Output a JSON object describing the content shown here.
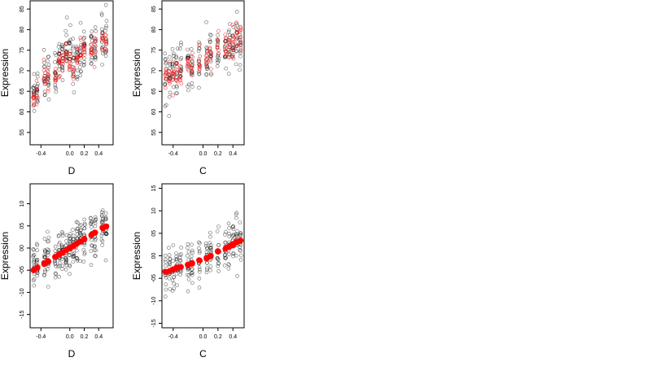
{
  "chart_data": [
    {
      "type": "scatter",
      "xlabel": "D",
      "ylabel": "Expression",
      "xlim": [
        -0.55,
        0.6
      ],
      "ylim": [
        5.2,
        8.7
      ],
      "xticks": [
        -0.4,
        0.0,
        0.2,
        0.4
      ],
      "xtick_labels": [
        "-0.4",
        "0.0",
        "0.2",
        "0.4"
      ],
      "yticks": [
        5.5,
        6.0,
        6.5,
        7.0,
        7.5,
        8.0,
        8.5
      ],
      "ytick_labels": [
        "55",
        "60",
        "65",
        "70",
        "75",
        "80",
        "85"
      ],
      "x_groups": [
        -0.5,
        -0.45,
        -0.35,
        -0.3,
        -0.2,
        -0.15,
        -0.1,
        -0.05,
        0.0,
        0.05,
        0.1,
        0.15,
        0.2,
        0.3,
        0.35,
        0.45,
        0.5
      ],
      "series": [
        {
          "color": "#000000",
          "marker": "open-circle",
          "group_means": [
            6.5,
            6.6,
            6.9,
            6.9,
            7.0,
            7.2,
            7.3,
            7.5,
            7.4,
            7.2,
            7.3,
            7.4,
            7.5,
            7.5,
            7.6,
            7.8,
            7.7
          ],
          "spread": 0.6,
          "points_per_group": 14
        },
        {
          "color": "#ff0000",
          "marker": "open-circle",
          "group_means": [
            6.4,
            6.5,
            6.7,
            6.8,
            7.0,
            7.2,
            7.3,
            7.4,
            7.3,
            7.0,
            7.4,
            7.5,
            7.6,
            7.5,
            7.6,
            7.8,
            7.8
          ],
          "spread": 0.3,
          "points_per_group": 8
        }
      ]
    },
    {
      "type": "scatter",
      "xlabel": "C",
      "ylabel": "Expression",
      "xlim": [
        -0.55,
        0.55
      ],
      "ylim": [
        5.2,
        8.7
      ],
      "xticks": [
        -0.4,
        0.0,
        0.2,
        0.4
      ],
      "xtick_labels": [
        "-0.4",
        "0.0",
        "0.2",
        "0.4"
      ],
      "yticks": [
        5.5,
        6.0,
        6.5,
        7.0,
        7.5,
        8.0,
        8.5
      ],
      "ytick_labels": [
        "55",
        "60",
        "65",
        "70",
        "75",
        "80",
        "85"
      ],
      "x_groups": [
        -0.5,
        -0.45,
        -0.4,
        -0.35,
        -0.3,
        -0.2,
        -0.15,
        -0.05,
        0.05,
        0.1,
        0.2,
        0.3,
        0.35,
        0.4,
        0.45,
        0.5
      ],
      "series": [
        {
          "color": "#000000",
          "marker": "open-circle",
          "group_means": [
            6.8,
            6.9,
            7.0,
            7.0,
            7.1,
            7.0,
            7.1,
            7.2,
            7.2,
            7.4,
            7.4,
            7.5,
            7.5,
            7.6,
            7.7,
            7.7
          ],
          "spread": 0.6,
          "points_per_group": 14
        },
        {
          "color": "#ff0000",
          "marker": "open-circle",
          "group_means": [
            6.8,
            6.9,
            6.9,
            7.0,
            7.0,
            7.1,
            7.1,
            7.2,
            7.3,
            7.4,
            7.5,
            7.6,
            7.6,
            7.7,
            7.7,
            7.8
          ],
          "spread": 0.35,
          "points_per_group": 8
        }
      ]
    },
    {
      "type": "scatter",
      "xlabel": "D",
      "ylabel": "Expression",
      "xlim": [
        -0.55,
        0.6
      ],
      "ylim": [
        -1.8,
        1.45
      ],
      "xticks": [
        -0.4,
        0.0,
        0.2,
        0.4
      ],
      "xtick_labels": [
        "-0.4",
        "0.0",
        "0.2",
        "0.4"
      ],
      "yticks": [
        -1.5,
        -1.0,
        -0.5,
        0.0,
        0.5,
        1.0
      ],
      "ytick_labels": [
        "-15",
        "-10",
        "-05",
        "00",
        "05",
        "10"
      ],
      "x_groups": [
        -0.5,
        -0.45,
        -0.35,
        -0.3,
        -0.2,
        -0.15,
        -0.1,
        -0.05,
        0.0,
        0.05,
        0.1,
        0.15,
        0.2,
        0.3,
        0.35,
        0.45,
        0.5
      ],
      "series": [
        {
          "color": "#000000",
          "marker": "open-circle",
          "group_means": [
            -0.5,
            -0.45,
            -0.35,
            -0.3,
            -0.2,
            -0.15,
            -0.1,
            -0.05,
            0.0,
            0.05,
            0.1,
            0.15,
            0.2,
            0.3,
            0.35,
            0.45,
            0.5
          ],
          "spread": 0.55,
          "points_per_group": 16
        },
        {
          "color": "#ff0000",
          "marker": "filled-circle",
          "group_means": [
            -0.5,
            -0.45,
            -0.35,
            -0.3,
            -0.2,
            -0.15,
            -0.1,
            -0.05,
            0.0,
            0.05,
            0.1,
            0.15,
            0.2,
            0.3,
            0.35,
            0.45,
            0.5
          ],
          "spread": 0.02,
          "points_per_group": 6
        }
      ]
    },
    {
      "type": "scatter",
      "xlabel": "C",
      "ylabel": "Expression",
      "xlim": [
        -0.55,
        0.55
      ],
      "ylim": [
        -1.6,
        1.6
      ],
      "xticks": [
        -0.4,
        0.0,
        0.2,
        0.4
      ],
      "xtick_labels": [
        "-0.4",
        "0.0",
        "0.2",
        "0.4"
      ],
      "yticks": [
        -1.5,
        -1.0,
        -0.5,
        0.0,
        0.5,
        1.0,
        1.5
      ],
      "ytick_labels": [
        "-15",
        "-10",
        "-05",
        "00",
        "05",
        "10",
        "15"
      ],
      "x_groups": [
        -0.5,
        -0.45,
        -0.4,
        -0.35,
        -0.3,
        -0.2,
        -0.15,
        -0.05,
        0.05,
        0.1,
        0.2,
        0.3,
        0.35,
        0.4,
        0.45,
        0.5
      ],
      "series": [
        {
          "color": "#000000",
          "marker": "open-circle",
          "group_means": [
            -0.35,
            -0.33,
            -0.3,
            -0.27,
            -0.25,
            -0.2,
            -0.17,
            -0.1,
            -0.05,
            0.0,
            0.1,
            0.17,
            0.2,
            0.25,
            0.3,
            0.33
          ],
          "spread": 0.5,
          "points_per_group": 14
        },
        {
          "color": "#ff0000",
          "marker": "filled-circle",
          "group_means": [
            -0.35,
            -0.33,
            -0.3,
            -0.27,
            -0.25,
            -0.2,
            -0.17,
            -0.1,
            -0.05,
            0.0,
            0.1,
            0.17,
            0.2,
            0.25,
            0.3,
            0.33
          ],
          "spread": 0.02,
          "points_per_group": 6
        }
      ]
    }
  ]
}
